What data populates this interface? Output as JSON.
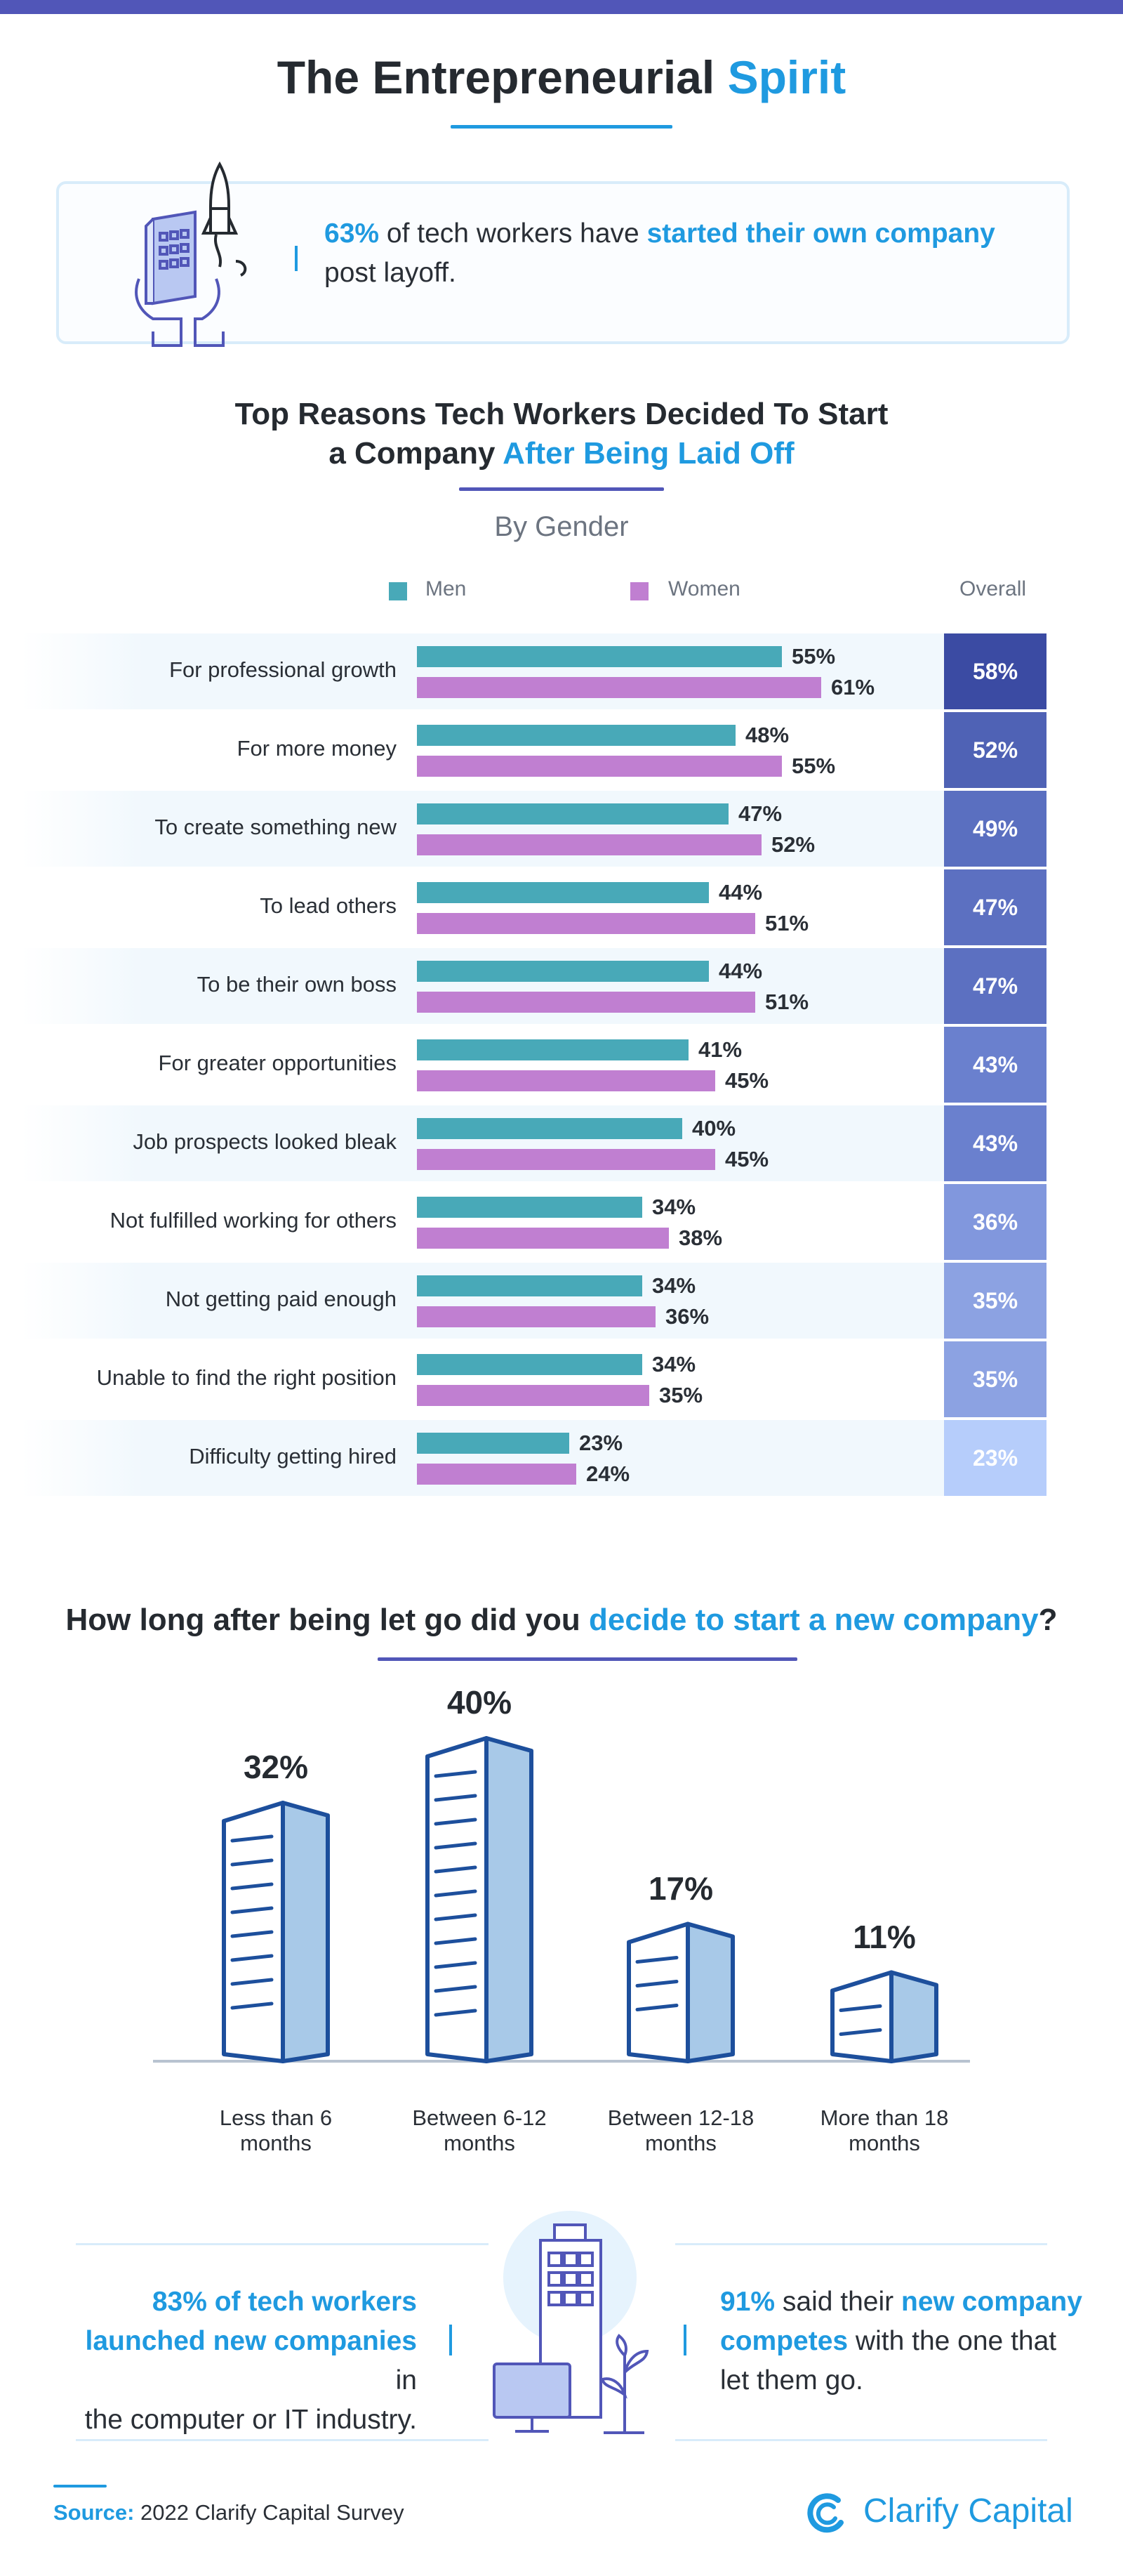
{
  "header": {
    "title_part1": "The Entrepreneurial",
    "title_part2": "Spirit"
  },
  "intro_stat": {
    "percent": "63%",
    "text_a": "of tech workers have",
    "highlight": "started their own company",
    "text_b": "post layoff."
  },
  "reasons_section": {
    "title_line1": "Top Reasons Tech Workers Decided To Start",
    "title_line2_plain": "a Company",
    "title_line2_highlight": "After Being Laid Off",
    "subtitle": "By Gender",
    "legend_men": "Men",
    "legend_women": "Women",
    "legend_overall": "Overall"
  },
  "colors": {
    "men": "#48a9b8",
    "women": "#c07fd1",
    "accent": "#1f9ae0",
    "purple": "#5156b8",
    "row_band": "#f1f8fd",
    "overall_scale": [
      "#3b4ba3",
      "#4f62b5",
      "#5a6fc0",
      "#5c70c1",
      "#5c70c1",
      "#6a80ce",
      "#6a80ce",
      "#8197dd",
      "#8ca2e2",
      "#8ca2e2",
      "#b6cdfb"
    ]
  },
  "chart_data": [
    {
      "type": "bar",
      "orientation": "horizontal",
      "title": "Top Reasons Tech Workers Decided To Start a Company After Being Laid Off",
      "subtitle": "By Gender",
      "categories": [
        "For professional growth",
        "For more money",
        "To create something new",
        "To lead others",
        "To be their own boss",
        "For greater opportunities",
        "Job prospects looked bleak",
        "Not fulfilled working for others",
        "Not getting paid enough",
        "Unable to find the right position",
        "Difficulty getting hired"
      ],
      "series": [
        {
          "name": "Men",
          "values": [
            55,
            48,
            47,
            44,
            44,
            41,
            40,
            34,
            34,
            34,
            23
          ]
        },
        {
          "name": "Women",
          "values": [
            61,
            55,
            52,
            51,
            51,
            45,
            45,
            38,
            36,
            35,
            24
          ]
        },
        {
          "name": "Overall",
          "values": [
            58,
            52,
            49,
            47,
            47,
            43,
            43,
            36,
            35,
            35,
            23
          ]
        }
      ],
      "unit": "%",
      "xlim": [
        0,
        61
      ]
    },
    {
      "type": "bar",
      "title": "How long after being let go did you decide to start a new company?",
      "categories": [
        "Less than 6 months",
        "Between 6-12 months",
        "Between 12-18 months",
        "More than 18 months"
      ],
      "values": [
        32,
        40,
        17,
        11
      ],
      "unit": "%"
    }
  ],
  "timing_section": {
    "question_plain": "How long after being let go did you",
    "question_highlight": "decide to start a new company",
    "question_end": "?",
    "category_lines": [
      [
        "Less than 6",
        "months"
      ],
      [
        "Between 6-12",
        "months"
      ],
      [
        "Between 12-18",
        "months"
      ],
      [
        "More than 18",
        "months"
      ]
    ]
  },
  "bottom_stats": {
    "left_highlight_1": "83% of tech workers",
    "left_highlight_2": "launched new companies",
    "left_text_2": "in",
    "left_text_3": "the computer or IT industry.",
    "right_percent": "91%",
    "right_text_1": "said their",
    "right_highlight_1": "new company",
    "right_highlight_2": "competes",
    "right_text_2": "with the one that",
    "right_text_3": "let them go."
  },
  "footer": {
    "source_label": "Source:",
    "source_text": "2022 Clarify Capital Survey",
    "brand": "Clarify Capital"
  }
}
